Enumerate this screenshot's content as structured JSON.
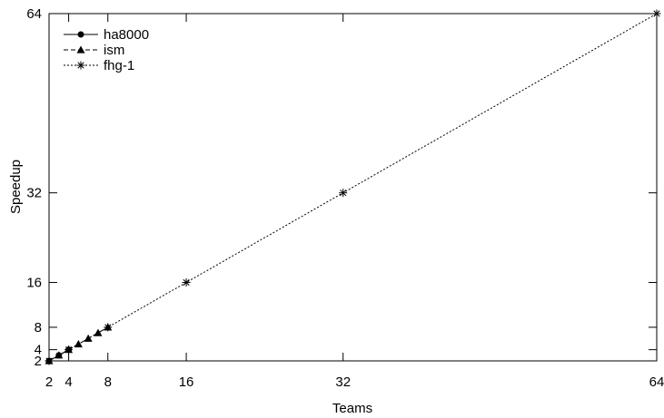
{
  "chart_data": {
    "type": "line",
    "xlabel": "Teams",
    "ylabel": "Speedup",
    "xlim": [
      2,
      64
    ],
    "ylim": [
      2,
      64
    ],
    "xticks": [
      2,
      4,
      8,
      16,
      32,
      64
    ],
    "yticks": [
      2,
      4,
      8,
      16,
      32,
      64
    ],
    "grid": false,
    "legend_position": "top-left",
    "series": [
      {
        "name": "ha8000",
        "line_style": "solid",
        "marker": "filled-circle",
        "x": [
          2,
          3,
          4
        ],
        "y": [
          2,
          3,
          4
        ]
      },
      {
        "name": "ism",
        "line_style": "dashed",
        "marker": "filled-triangle",
        "x": [
          2,
          3,
          4,
          5,
          6,
          7,
          8
        ],
        "y": [
          2,
          3,
          4,
          5,
          6,
          7,
          8
        ]
      },
      {
        "name": "fhg-1",
        "line_style": "dotted",
        "marker": "asterisk",
        "x": [
          2,
          4,
          8,
          16,
          32,
          64
        ],
        "y": [
          2,
          4,
          8,
          16,
          32,
          64
        ]
      }
    ]
  }
}
